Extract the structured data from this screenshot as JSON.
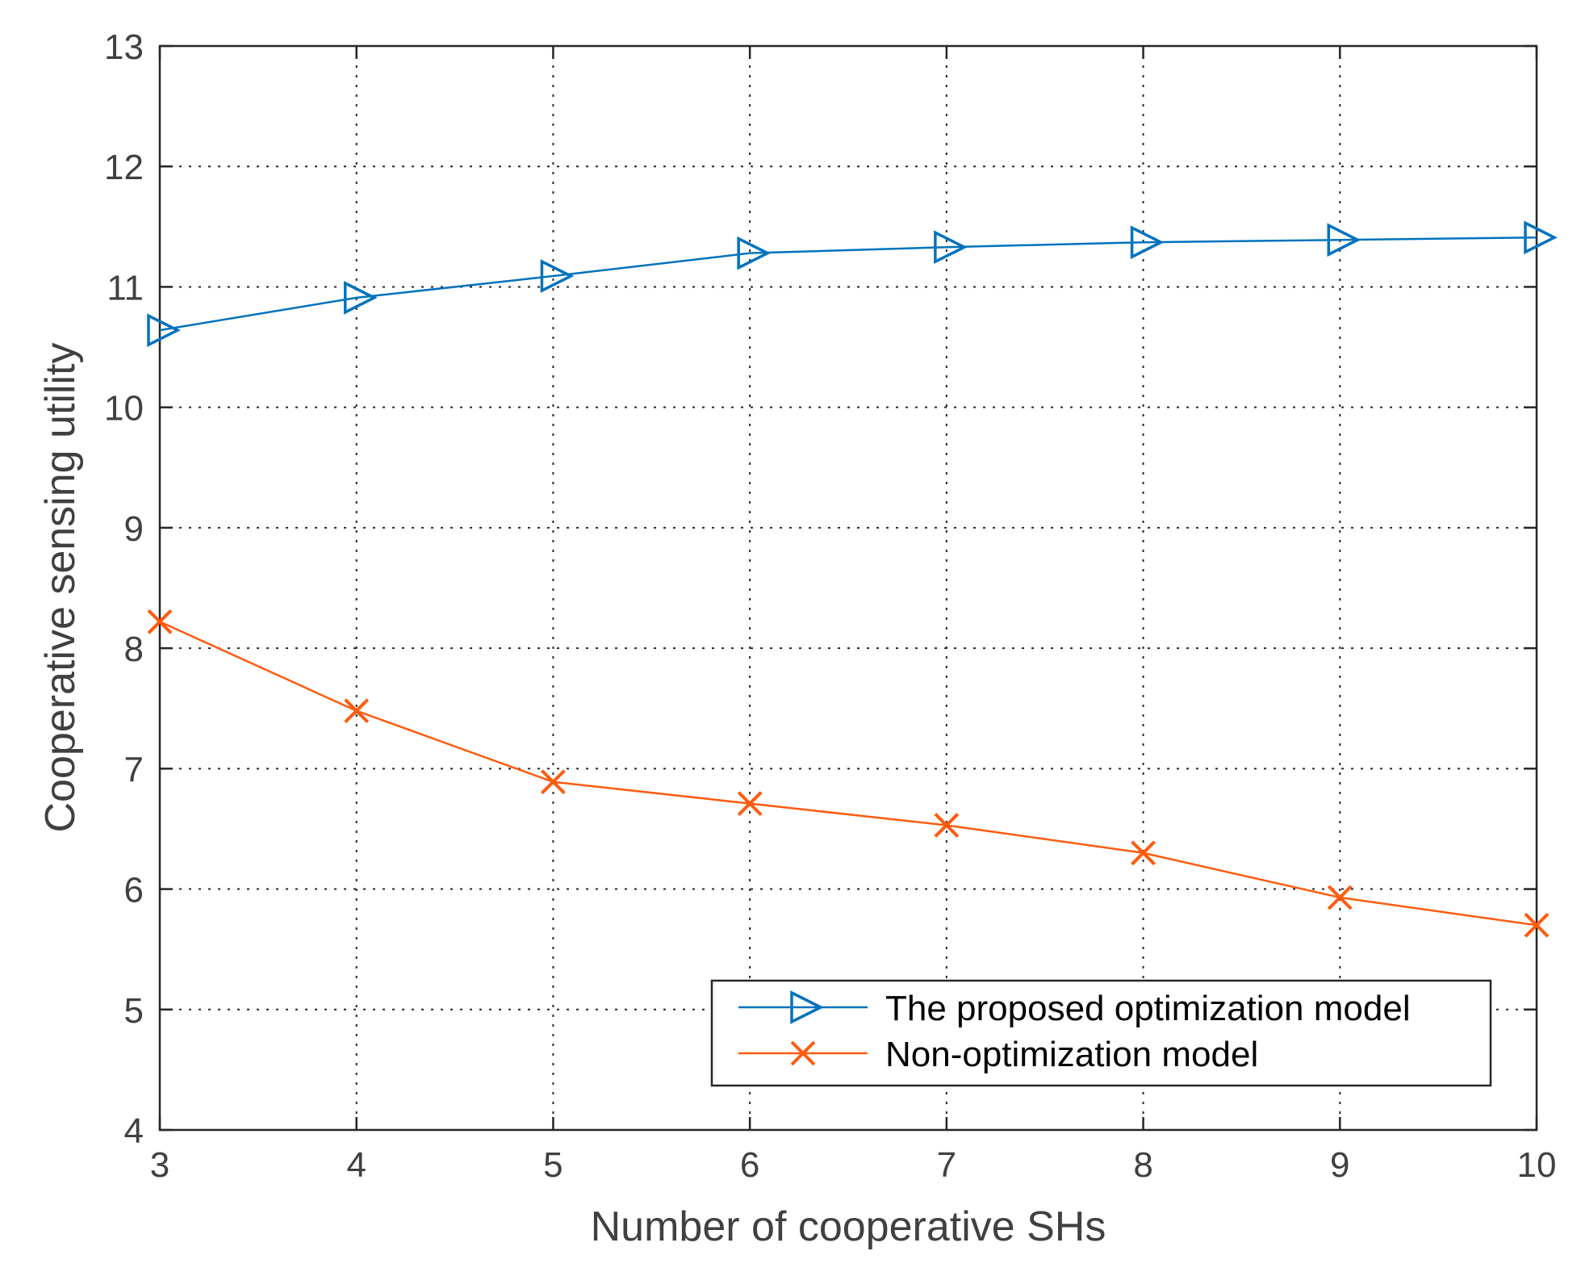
{
  "chart_data": {
    "type": "line",
    "title": "",
    "xlabel": "Number of cooperative SHs",
    "ylabel": "Cooperative sensing utility",
    "x": [
      3,
      4,
      5,
      6,
      7,
      8,
      9,
      10
    ],
    "xlim": [
      3,
      10
    ],
    "ylim": [
      4,
      13
    ],
    "xticks": [
      "3",
      "4",
      "5",
      "6",
      "7",
      "8",
      "9",
      "10"
    ],
    "yticks": [
      "4",
      "5",
      "6",
      "7",
      "8",
      "9",
      "10",
      "11",
      "12",
      "13"
    ],
    "grid": true,
    "legend_position": "bottom-right",
    "series": [
      {
        "name": "The proposed optimization model",
        "color": "#0072BD",
        "marker": "triangle-right",
        "values": [
          10.64,
          10.91,
          11.09,
          11.28,
          11.33,
          11.37,
          11.39,
          11.41
        ]
      },
      {
        "name": "Non-optimization model",
        "color": "#FF5B0F",
        "marker": "x",
        "values": [
          8.22,
          7.48,
          6.89,
          6.71,
          6.53,
          6.3,
          5.93,
          5.7
        ]
      }
    ]
  }
}
